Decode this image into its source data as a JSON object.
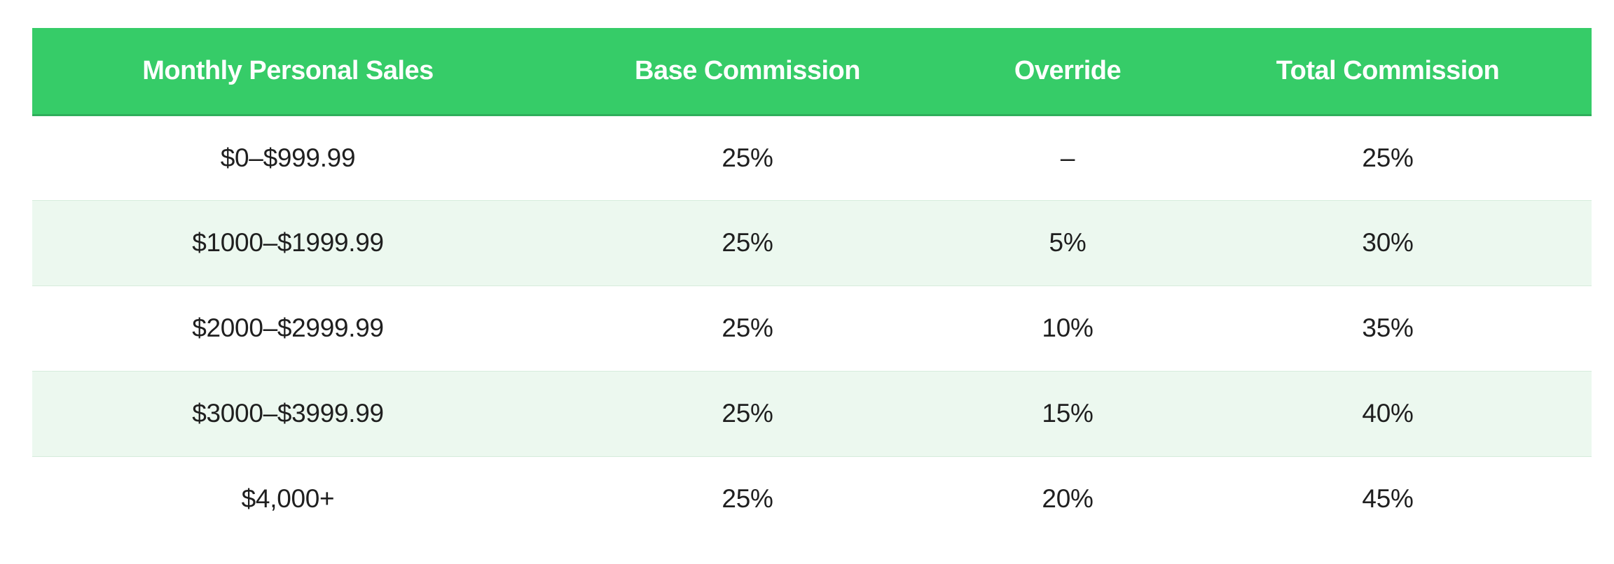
{
  "table": {
    "headers": [
      "Monthly Personal Sales",
      "Base Commission",
      "Override",
      "Total Commission"
    ],
    "rows": [
      {
        "sales": "$0–$999.99",
        "base": "25%",
        "override": "–",
        "total": "25%"
      },
      {
        "sales": "$1000–$1999.99",
        "base": "25%",
        "override": "5%",
        "total": "30%"
      },
      {
        "sales": "$2000–$2999.99",
        "base": "25%",
        "override": "10%",
        "total": "35%"
      },
      {
        "sales": "$3000–$3999.99",
        "base": "25%",
        "override": "15%",
        "total": "40%"
      },
      {
        "sales": "$4,000+",
        "base": "25%",
        "override": "20%",
        "total": "45%"
      }
    ]
  },
  "colors": {
    "header_bg": "#36cc68",
    "header_text": "#ffffff",
    "alt_row_bg": "#ecf8ef"
  }
}
